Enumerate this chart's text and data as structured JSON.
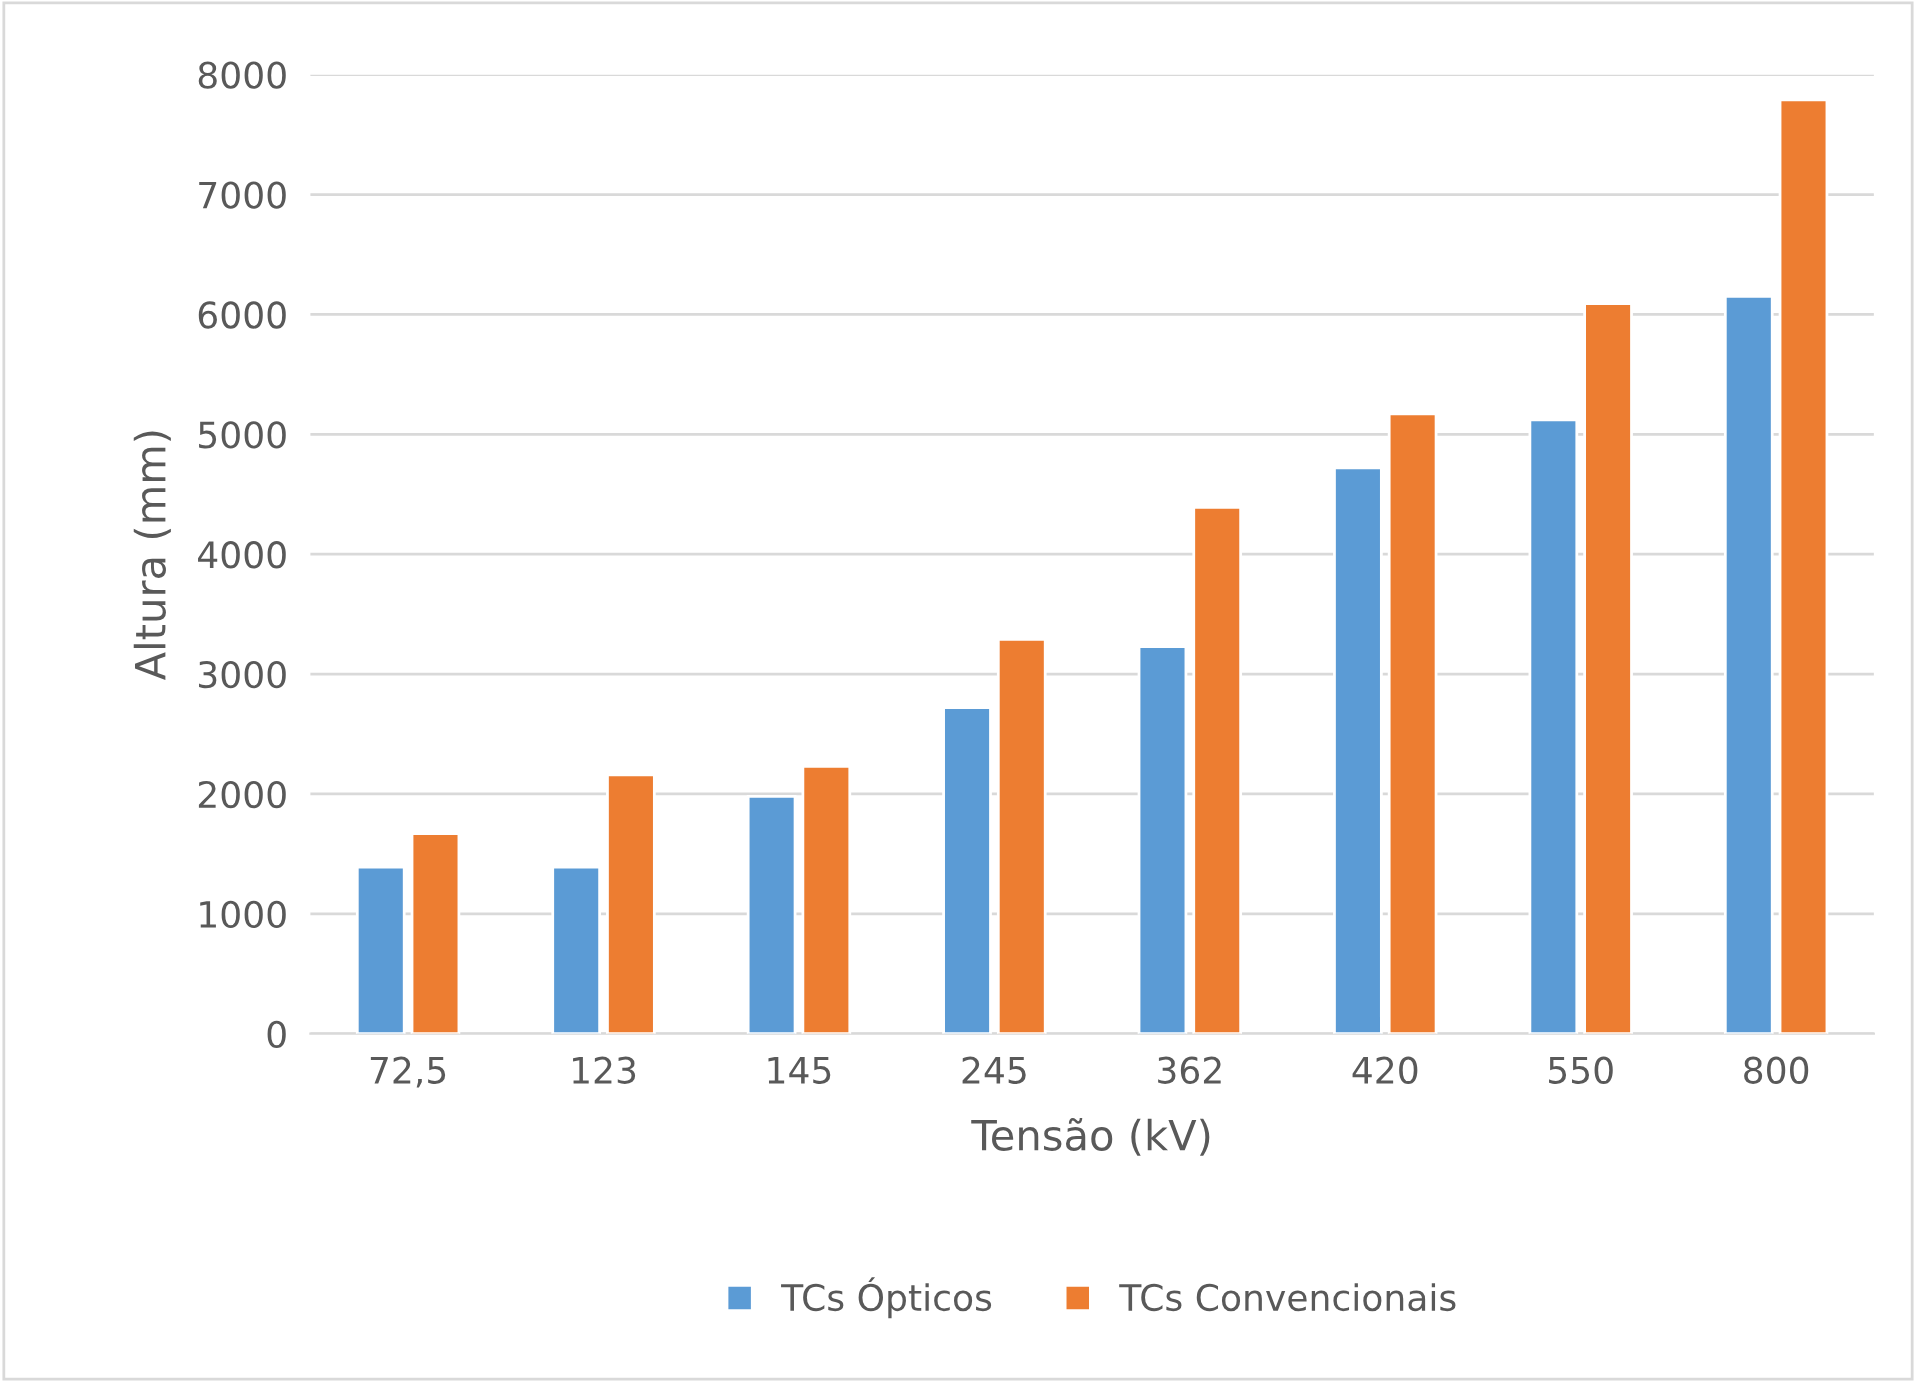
{
  "chart_data": {
    "type": "bar",
    "xlabel": "Tensão (kV)",
    "ylabel": "Altura (mm)",
    "categories": [
      "72,5",
      "123",
      "145",
      "245",
      "362",
      "420",
      "550",
      "800"
    ],
    "series": [
      {
        "name": "TCs Ópticos",
        "color": "#5b9bd5",
        "values": [
          1390,
          1390,
          1980,
          2720,
          3230,
          4720,
          5120,
          6150
        ]
      },
      {
        "name": "TCs Convencionais",
        "color": "#ed7d31",
        "values": [
          1670,
          2160,
          2230,
          3290,
          4390,
          5170,
          6090,
          7790
        ]
      }
    ],
    "ylim": [
      0,
      8000
    ],
    "yticks": [
      0,
      1000,
      2000,
      3000,
      4000,
      5000,
      6000,
      7000,
      8000
    ],
    "grid": "y",
    "legend": "bottom"
  }
}
